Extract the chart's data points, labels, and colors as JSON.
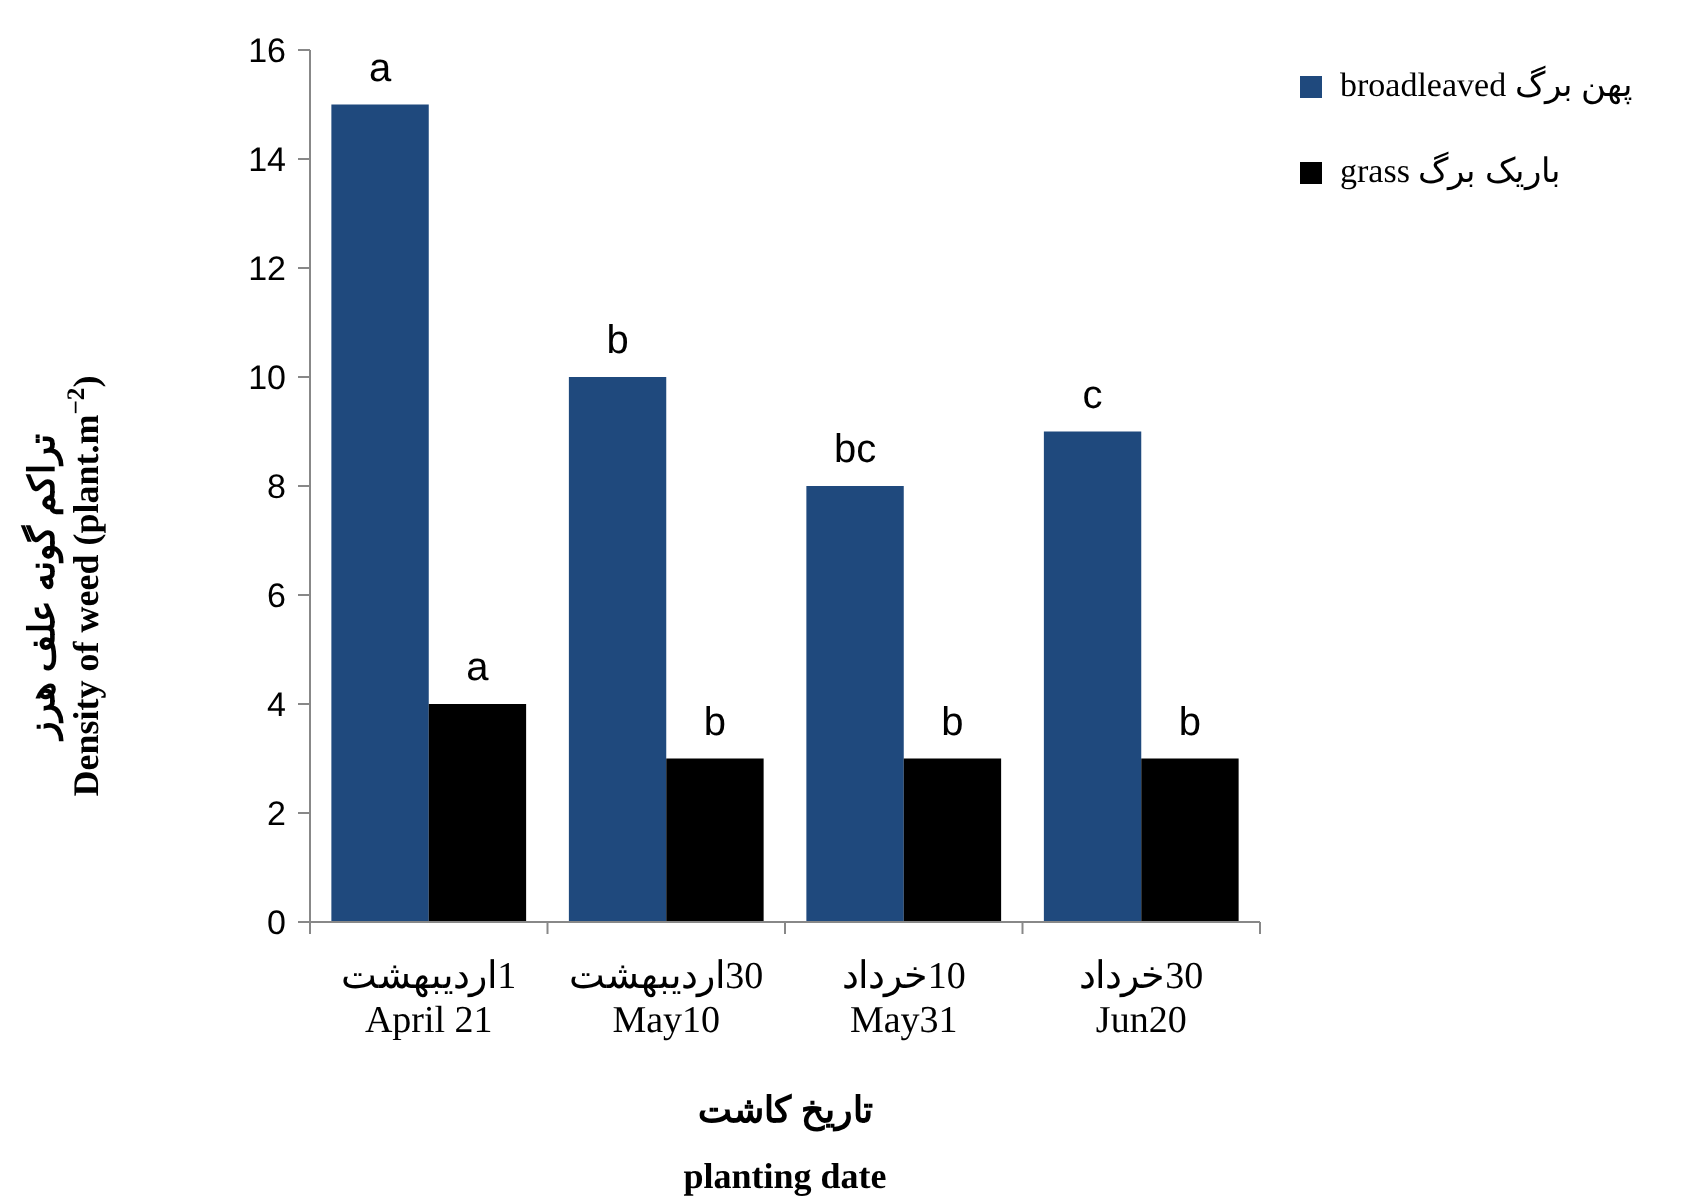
{
  "chart_data": {
    "type": "bar",
    "categories": [
      "1اردیبهشت\nApril 21",
      "30اردیبهشت\nMay10",
      "10خرداد\nMay31",
      "30خرداد\nJun20"
    ],
    "series": [
      {
        "name": "broadleaved پهن برگ",
        "color": "#1f497d",
        "values": [
          15,
          10,
          8,
          9
        ]
      },
      {
        "name": "grass باریک برگ",
        "color": "#000000",
        "values": [
          4,
          3,
          3,
          3
        ]
      }
    ],
    "ylim": [
      0,
      16
    ],
    "yticks": [
      0,
      2,
      4,
      6,
      8,
      10,
      12,
      14,
      16
    ],
    "xlabel": "تاریخ کاشت\nplanting date",
    "ylabel": "تراکم گونه علف هرز\nDensity of weed (plant.m$^{−2}$)",
    "legend": "top right",
    "grid": false,
    "annotations": [
      {
        "text": "a",
        "x": "1اردیبهشت\nApril 21",
        "y": 15
      },
      {
        "text": "b",
        "x": "30اردیبهشت\nMay10",
        "y": 10
      },
      {
        "text": "bc",
        "x": "10خرداد\nMay31",
        "y": 8
      },
      {
        "text": "c",
        "x": "30خرداد\nJun20",
        "y": 9
      },
      {
        "text": "a",
        "x": "1اردیبهشت\nApril 21",
        "y": 4
      },
      {
        "text": "b",
        "x": "30اردیبهشت\nMay10",
        "y": 3
      },
      {
        "text": "b",
        "x": "10خرداد\nMay31",
        "y": 3
      },
      {
        "text": "b",
        "x": "30خرداد\nJun20",
        "y": 3
      }
    ]
  }
}
